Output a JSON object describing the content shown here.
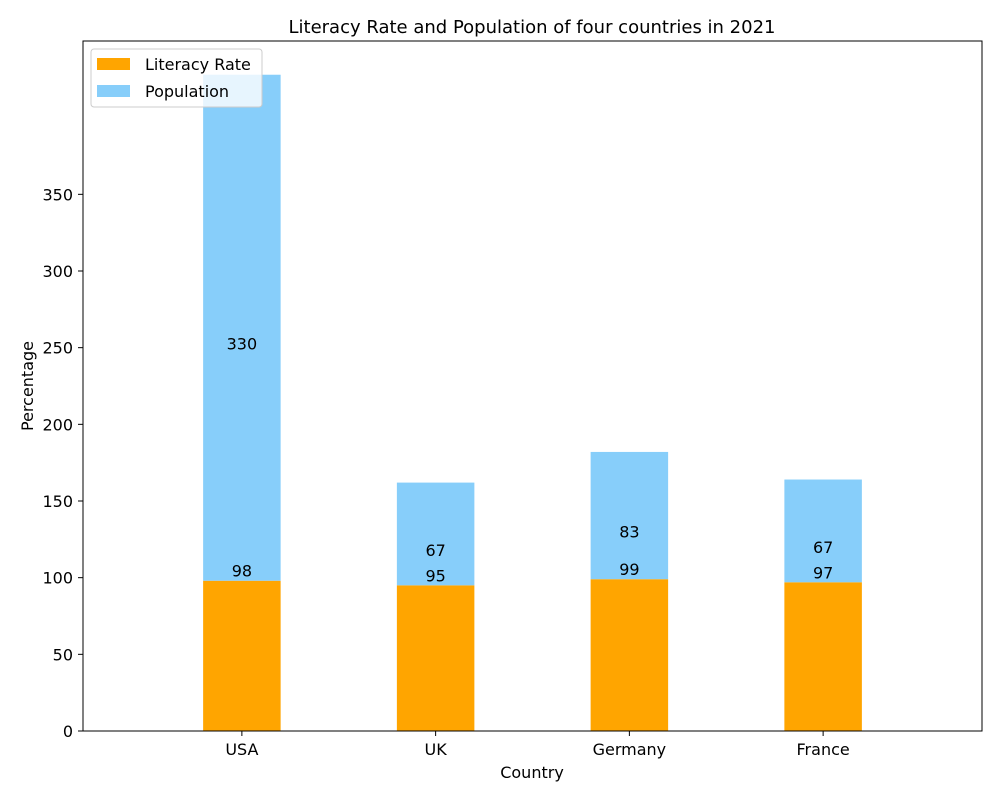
{
  "chart_data": {
    "type": "bar",
    "stacked": true,
    "title": "Literacy Rate and Population of four countries in 2021",
    "xlabel": "Country",
    "ylabel": "Percentage",
    "categories": [
      "USA",
      "UK",
      "Germany",
      "France"
    ],
    "series": [
      {
        "name": "Literacy Rate",
        "values": [
          98,
          95,
          99,
          97
        ],
        "color": "#FFA500"
      },
      {
        "name": "Population",
        "values": [
          330,
          67,
          83,
          67
        ],
        "color": "#87CEFA"
      }
    ],
    "ylim": [
      0,
      450
    ],
    "yticks": [
      0,
      50,
      100,
      150,
      200,
      250,
      300,
      350
    ],
    "legend": "top-left",
    "grid": false
  }
}
